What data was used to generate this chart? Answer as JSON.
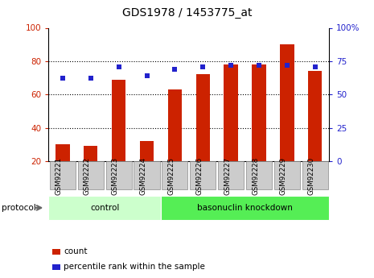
{
  "title": "GDS1978 / 1453775_at",
  "samples": [
    "GSM92221",
    "GSM92222",
    "GSM92223",
    "GSM92224",
    "GSM92225",
    "GSM92226",
    "GSM92227",
    "GSM92228",
    "GSM92229",
    "GSM92230"
  ],
  "count_values": [
    30,
    29,
    69,
    32,
    63,
    72,
    78,
    78,
    90,
    74
  ],
  "percentile_values": [
    62,
    62,
    71,
    64,
    69,
    71,
    72,
    72,
    72,
    71
  ],
  "ylim_left": [
    20,
    100
  ],
  "ylim_right": [
    0,
    100
  ],
  "yticks_left": [
    20,
    40,
    60,
    80,
    100
  ],
  "yticks_right": [
    0,
    25,
    50,
    75,
    100
  ],
  "ytick_labels_right": [
    "0",
    "25",
    "50",
    "75",
    "100%"
  ],
  "bar_color": "#cc2200",
  "dot_color": "#2222cc",
  "protocol_groups": [
    {
      "label": "control",
      "start": 0,
      "end": 3,
      "color": "#ccffcc"
    },
    {
      "label": "basonuclin knockdown",
      "start": 4,
      "end": 9,
      "color": "#55ee55"
    }
  ],
  "protocol_label": "protocol",
  "legend_items": [
    {
      "color": "#cc2200",
      "label": "count"
    },
    {
      "color": "#2222cc",
      "label": "percentile rank within the sample"
    }
  ],
  "tick_label_color_left": "#cc2200",
  "tick_label_color_right": "#2222cc",
  "xtick_bg_color": "#cccccc",
  "xtick_border_color": "#888888",
  "dotgrid_levels": [
    40,
    60,
    80
  ]
}
